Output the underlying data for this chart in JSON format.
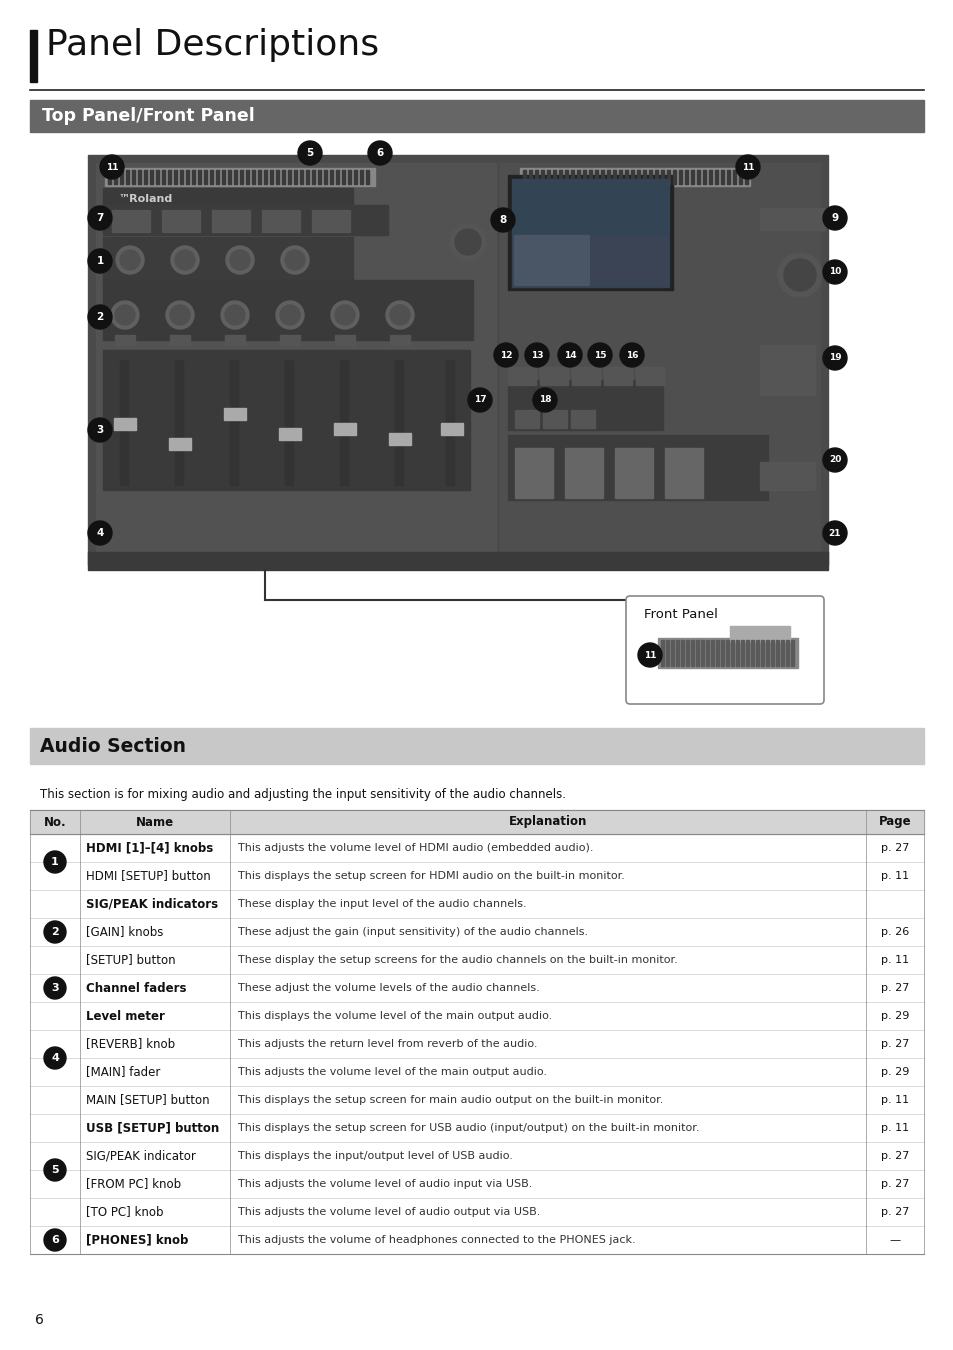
{
  "title": "Panel Descriptions",
  "section1_title": "Top Panel/Front Panel",
  "section2_title": "Audio Section",
  "section2_intro": "This section is for mixing audio and adjusting the input sensitivity of the audio channels.",
  "table_headers": [
    "No.",
    "Name",
    "Explanation",
    "Page"
  ],
  "table_rows": [
    {
      "no": "1",
      "name": "HDMI [1]–[4] knobs",
      "explanation": "This adjusts the volume level of HDMI audio (embedded audio).",
      "page": "p. 27"
    },
    {
      "no": "",
      "name": "HDMI [SETUP] button",
      "explanation": "This displays the setup screen for HDMI audio on the built-in monitor.",
      "page": "p. 11"
    },
    {
      "no": "2",
      "name": "SIG/PEAK indicators",
      "explanation": "These display the input level of the audio channels.",
      "page": ""
    },
    {
      "no": "",
      "name": "[GAIN] knobs",
      "explanation": "These adjust the gain (input sensitivity) of the audio channels.",
      "page": "p. 26"
    },
    {
      "no": "",
      "name": "[SETUP] button",
      "explanation": "These display the setup screens for the audio channels on the built-in monitor.",
      "page": "p. 11"
    },
    {
      "no": "3",
      "name": "Channel faders",
      "explanation": "These adjust the volume levels of the audio channels.",
      "page": "p. 27"
    },
    {
      "no": "4",
      "name": "Level meter",
      "explanation": "This displays the volume level of the main output audio.",
      "page": "p. 29"
    },
    {
      "no": "",
      "name": "[REVERB] knob",
      "explanation": "This adjusts the return level from reverb of the audio.",
      "page": "p. 27"
    },
    {
      "no": "",
      "name": "[MAIN] fader",
      "explanation": "This adjusts the volume level of the main output audio.",
      "page": "p. 29"
    },
    {
      "no": "",
      "name": "MAIN [SETUP] button",
      "explanation": "This displays the setup screen for main audio output on the built-in monitor.",
      "page": "p. 11"
    },
    {
      "no": "5",
      "name": "USB [SETUP] button",
      "explanation": "This displays the setup screen for USB audio (input/output) on the built-in monitor.",
      "page": "p. 11"
    },
    {
      "no": "",
      "name": "SIG/PEAK indicator",
      "explanation": "This displays the input/output level of USB audio.",
      "page": "p. 27"
    },
    {
      "no": "",
      "name": "[FROM PC] knob",
      "explanation": "This adjusts the volume level of audio input via USB.",
      "page": "p. 27"
    },
    {
      "no": "",
      "name": "[TO PC] knob",
      "explanation": "This adjusts the volume level of audio output via USB.",
      "page": "p. 27"
    },
    {
      "no": "6",
      "name": "[PHONES] knob",
      "explanation": "This adjusts the volume of headphones connected to the PHONES jack.",
      "page": "—"
    }
  ],
  "group_info": [
    {
      "no": "1",
      "rows": [
        0,
        1
      ]
    },
    {
      "no": "2",
      "rows": [
        2,
        3,
        4
      ]
    },
    {
      "no": "3",
      "rows": [
        5
      ]
    },
    {
      "no": "4",
      "rows": [
        6,
        7,
        8,
        9
      ]
    },
    {
      "no": "5",
      "rows": [
        10,
        11,
        12,
        13
      ]
    },
    {
      "no": "6",
      "rows": [
        14
      ]
    }
  ],
  "bold_names": [
    "HDMI [1]–[4] knobs",
    "SIG/PEAK indicators",
    "Channel faders",
    "Level meter",
    "USB [SETUP] button",
    "[PHONES] knob",
    "HDMI [SETUP] button",
    "[GAIN] knobs",
    "[SETUP] button",
    "[REVERB] knob",
    "[MAIN] fader",
    "MAIN [SETUP] button",
    "SIG/PEAK indicator",
    "[FROM PC] knob",
    "[TO PC] knob"
  ],
  "bg_color": "#ffffff",
  "page_number": "6"
}
